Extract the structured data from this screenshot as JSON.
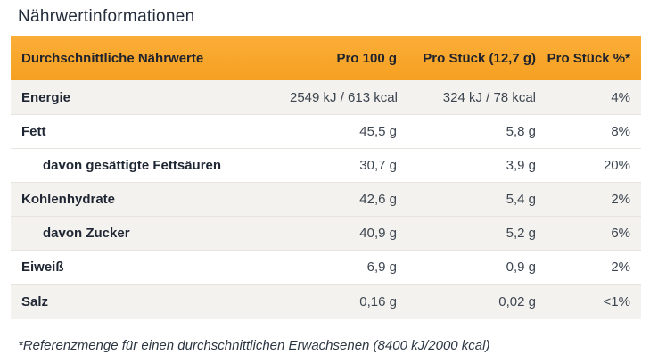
{
  "page": {
    "title": "Nährwertinformationen",
    "footnote": "*Referenzmenge für einen durchschnittlichen Erwachsenen (8400 kJ/2000 kcal)"
  },
  "table": {
    "columns": {
      "nutrients": "Durchschnittliche Nährwerte",
      "per_100g": "Pro 100 g",
      "per_piece": "Pro Stück (12,7 g)",
      "per_piece_percent": "Pro Stück %*"
    },
    "rows": [
      {
        "label": "Energie",
        "per_100g": "2549 kJ / 613 kcal",
        "per_piece": "324 kJ / 78 kcal",
        "per_piece_percent": "4%"
      },
      {
        "label": "Fett",
        "per_100g": "45,5 g",
        "per_piece": "5,8 g",
        "per_piece_percent": "8%"
      },
      {
        "label": "davon gesättigte Fettsäuren",
        "per_100g": "30,7 g",
        "per_piece": "3,9 g",
        "per_piece_percent": "20%"
      },
      {
        "label": "Kohlenhydrate",
        "per_100g": "42,6 g",
        "per_piece": "5,4 g",
        "per_piece_percent": "2%"
      },
      {
        "label": "davon Zucker",
        "per_100g": "40,9 g",
        "per_piece": "5,2 g",
        "per_piece_percent": "6%"
      },
      {
        "label": "Eiweiß",
        "per_100g": "6,9 g",
        "per_piece": "0,9 g",
        "per_piece_percent": "2%"
      },
      {
        "label": "Salz",
        "per_100g": "0,16 g",
        "per_piece": "0,02 g",
        "per_piece_percent": "<1%"
      }
    ]
  },
  "colors": {
    "header_bg": "#f8a72c",
    "row_alt_bg": "#f4f2ee",
    "text_dark": "#1e2733",
    "value_text": "#3c4550",
    "separator": "#e7e4df"
  }
}
